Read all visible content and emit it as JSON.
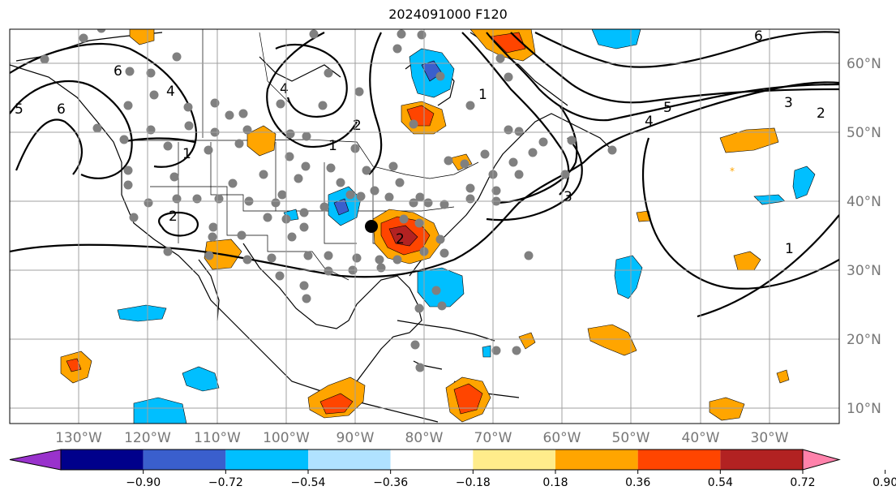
{
  "title": "2024091000 F120",
  "lon_labels": [
    "130°W",
    "120°W",
    "110°W",
    "100°W",
    "90°W",
    "80°W",
    "70°W",
    "60°W",
    "50°W",
    "40°W",
    "30°W"
  ],
  "lat_labels": [
    "60°N",
    "50°N",
    "40°N",
    "30°N",
    "20°N",
    "10°N"
  ],
  "colorbar": {
    "colors": [
      "#9932cc",
      "#00008b",
      "#3a5fcd",
      "#00bfff",
      "#b0e2ff",
      "#ffffff",
      "#ffec8b",
      "#ffa500",
      "#ff4500",
      "#b22222",
      "#ff82ab"
    ],
    "tick_labels": [
      "−0.90",
      "−0.72",
      "−0.54",
      "−0.36",
      "−0.18",
      "0.18",
      "0.36",
      "0.54",
      "0.72",
      "0.90"
    ]
  },
  "contour_labels": [
    "6",
    "6",
    "4",
    "4",
    "5",
    "1",
    "2",
    "1",
    "1",
    "6",
    "5",
    "4",
    "3",
    "2",
    "3",
    "1",
    "2",
    "2"
  ],
  "station_count": 120
}
